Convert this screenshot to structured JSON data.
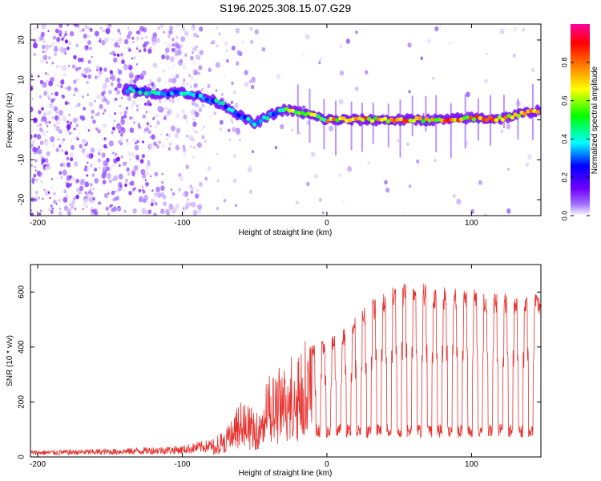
{
  "figure_title": "S196.2025.308.15.07.G29",
  "chart_data": [
    {
      "type": "heatmap",
      "title": "S196.2025.308.15.07.G29",
      "xlabel": "Height of straight line (km)",
      "ylabel": "Frequency (Hz)",
      "xlim": [
        -205,
        148
      ],
      "ylim": [
        -24,
        24
      ],
      "x_ticks": [
        -200,
        -100,
        0,
        100
      ],
      "y_ticks": [
        -20,
        -10,
        0,
        10,
        20
      ],
      "colorbar": {
        "label": "Normalized spectral amplitude",
        "range": [
          0,
          1
        ],
        "ticks": [
          0.0,
          0.2,
          0.4,
          0.6,
          0.8
        ],
        "colormap": [
          "#ffffff",
          "#a070ff",
          "#7000ff",
          "#0000ff",
          "#00ffff",
          "#00ff00",
          "#ffff00",
          "#ff8000",
          "#ff0000",
          "#ff00a0"
        ]
      },
      "ridge": {
        "description": "dominant frequency vs height",
        "x": [
          -135,
          -125,
          -115,
          -100,
          -90,
          -80,
          -70,
          -60,
          -50,
          -40,
          -30,
          -20,
          -10,
          0,
          20,
          50,
          80,
          100,
          120,
          148
        ],
        "y": [
          7.5,
          7,
          6.5,
          7,
          6,
          5,
          3.5,
          1,
          -1,
          1,
          2.5,
          2,
          1,
          0,
          0,
          0,
          0,
          0.5,
          0.3,
          2.5
        ]
      }
    },
    {
      "type": "line",
      "xlabel": "Height of straight line (km)",
      "ylabel": "SNR (10 * v/v)",
      "xlim": [
        -205,
        148
      ],
      "ylim": [
        0,
        700
      ],
      "x_ticks": [
        -200,
        -100,
        0,
        100
      ],
      "y_ticks": [
        0,
        200,
        400,
        600
      ],
      "series": [
        {
          "name": "SNR",
          "color": "#e8322e",
          "envelope_x": [
            -205,
            -150,
            -100,
            -80,
            -70,
            -60,
            -50,
            -40,
            -30,
            -20,
            -10,
            0,
            10,
            20,
            30,
            40,
            50,
            60,
            80,
            100,
            120,
            148
          ],
          "envelope_y": [
            20,
            25,
            35,
            55,
            90,
            180,
            150,
            260,
            300,
            360,
            400,
            420,
            450,
            500,
            560,
            590,
            620,
            630,
            610,
            600,
            590,
            580
          ],
          "dropouts_x": [
            -20,
            -13,
            -6,
            1,
            8,
            15,
            22,
            29,
            36,
            43,
            50,
            57,
            64,
            71,
            78,
            85,
            92,
            99,
            106,
            113,
            120,
            127,
            134,
            141
          ]
        }
      ]
    }
  ]
}
